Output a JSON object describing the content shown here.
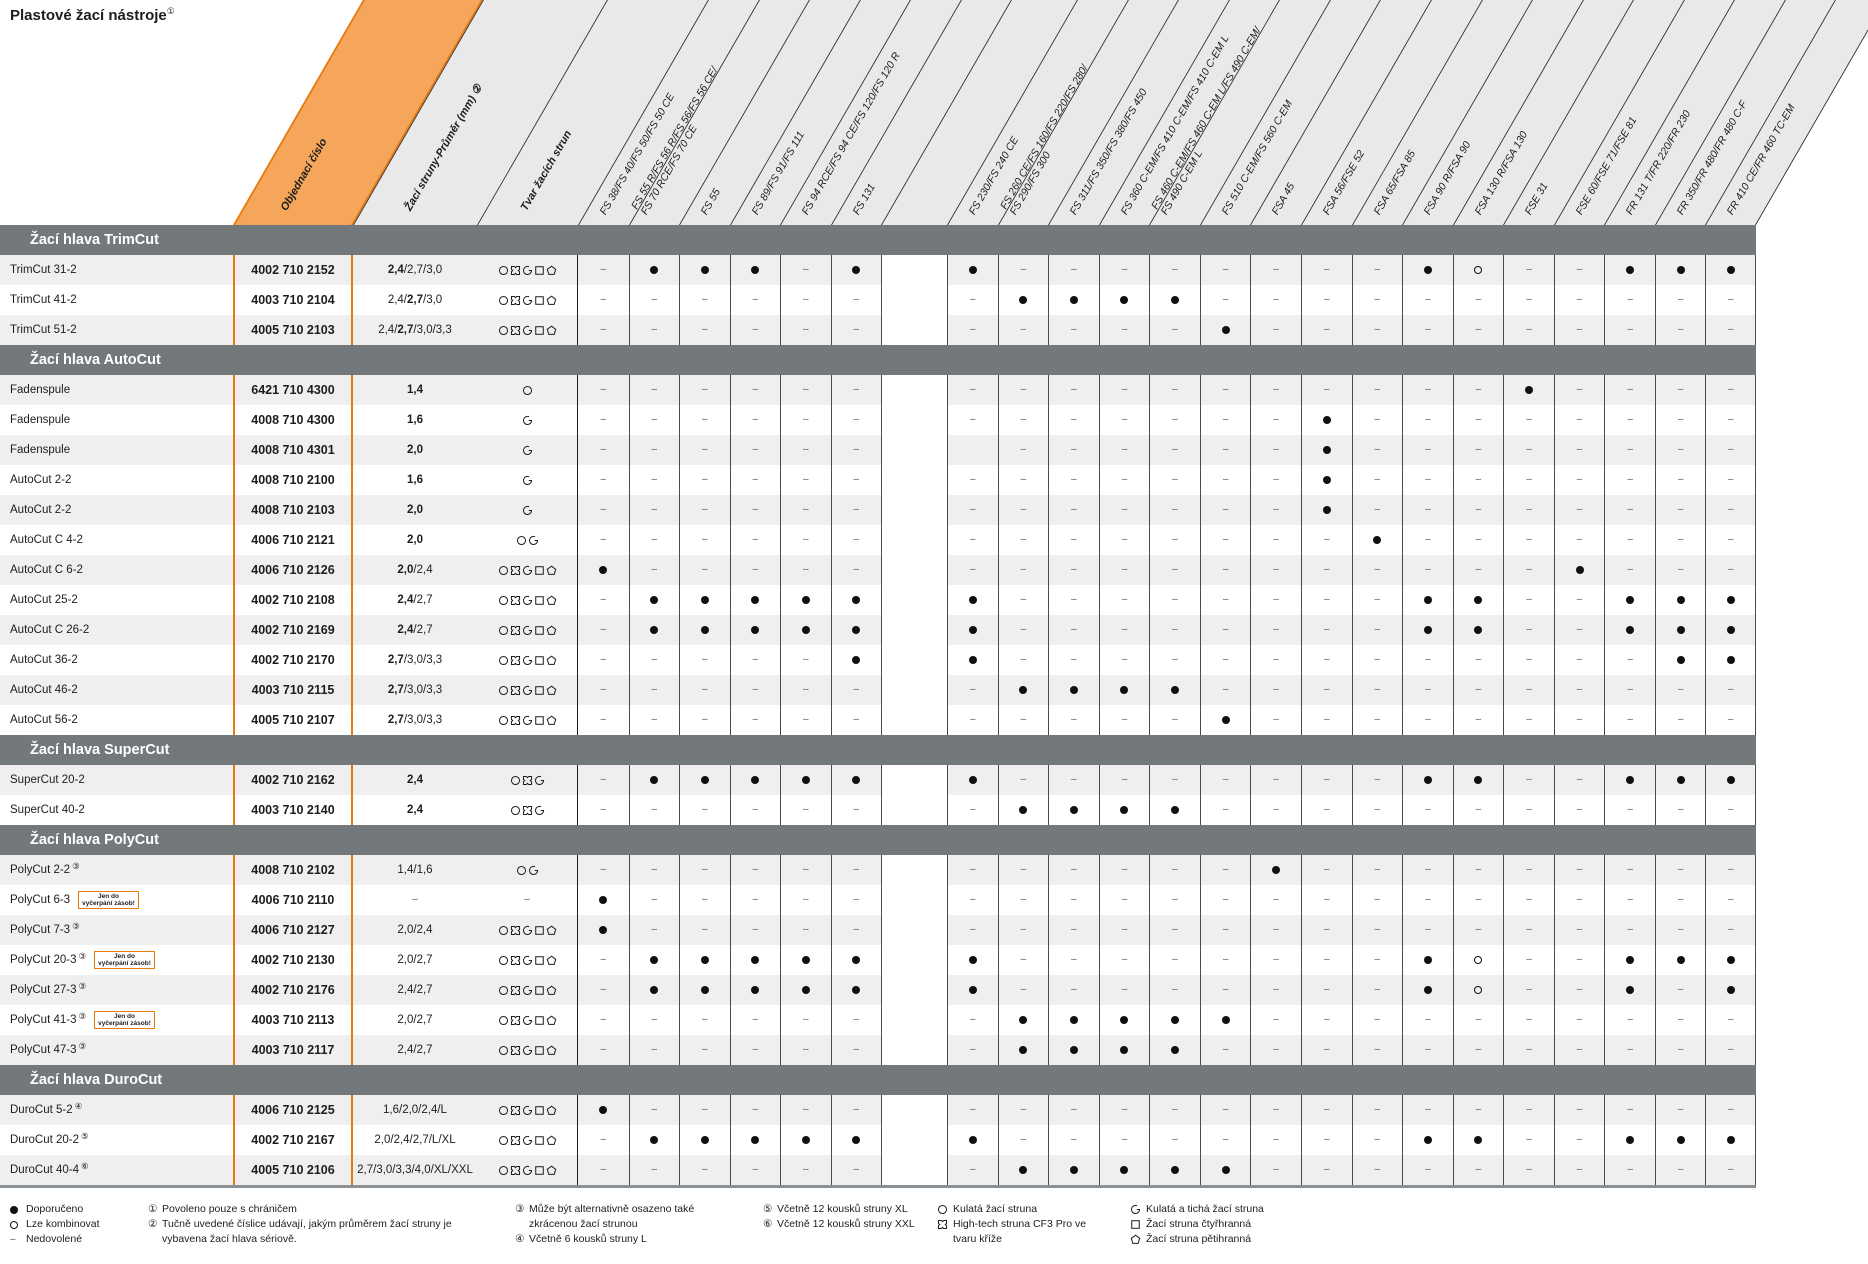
{
  "title": {
    "text": "Plastové žací nástroje",
    "sup": "①"
  },
  "header": {
    "order_label": "Objednací číslo",
    "diameter_label": "Žací struny-Průměr (mm) ②",
    "shape_label": "Tvar žacích strun",
    "models": [
      {
        "lines": [
          "FS 38/FS 40/FS 50/FS 50 CE"
        ]
      },
      {
        "lines": [
          "FS 55 R/FS 56 R/FS 56/FS 56 CE/",
          "FS 70 RCE/FS 70 CE"
        ]
      },
      {
        "lines": [
          "FS 55"
        ]
      },
      {
        "lines": [
          "FS 89/FS 91/FS 111"
        ]
      },
      {
        "lines": [
          "FS 94 RCE/FS 94 CE/FS 120/FS 120 R"
        ]
      },
      {
        "lines": [
          "FS 131"
        ]
      },
      {
        "lines": []
      },
      {
        "lines": [
          "FS 230/FS 240 CE"
        ]
      },
      {
        "lines": [
          "FS 260 CE/FS 160/FS 220/FS 280/",
          "FS 290/FS 300"
        ]
      },
      {
        "lines": [
          "FS 311/FS 350/FS 380/FS 450"
        ]
      },
      {
        "lines": [
          "FS 360 C-EM/FS 410 C-EM/FS 410 C-EM L"
        ]
      },
      {
        "lines": [
          "FS 460 C-EM/FS 460 C-EM L/FS 490 C-EM/",
          "FS 490 C-EM L"
        ]
      },
      {
        "lines": [
          "FS 510 C-EM/FS 560 C-EM"
        ]
      },
      {
        "lines": [
          "FSA 45"
        ]
      },
      {
        "lines": [
          "FSA 56/FSE 52"
        ]
      },
      {
        "lines": [
          "FSA 65/FSA 85"
        ]
      },
      {
        "lines": [
          "FSA 90 R/FSA 90"
        ]
      },
      {
        "lines": [
          "FSA 130 R/FSA 130"
        ]
      },
      {
        "lines": [
          "FSE 31"
        ]
      },
      {
        "lines": [
          "FSE 60/FSE 71/FSE 81"
        ]
      },
      {
        "lines": [
          "FR 131 T/FR 220/FR 230"
        ]
      },
      {
        "lines": [
          "FR 350/FR 480/FR 480 C-F"
        ]
      },
      {
        "lines": [
          "FR 410 CE/FR 460 TC-EM"
        ]
      }
    ]
  },
  "badge": {
    "line1": "Jen do",
    "line2": "vyčerpání zásob!"
  },
  "sections": [
    {
      "title": "Žací hlava TrimCut",
      "rows": [
        {
          "name": "TrimCut 31-2",
          "sup": "",
          "badge": false,
          "order": "4002 710 2152",
          "dia": "2,4/2,7/3,0",
          "bold_idx": 0,
          "shapes": [
            "circle",
            "cross",
            "quiet",
            "square",
            "penta"
          ],
          "matrix": "-fff-f.f--------fo--fff"
        },
        {
          "name": "TrimCut 41-2",
          "sup": "",
          "badge": false,
          "order": "4003 710 2104",
          "dia": "2,4/2,7/3,0",
          "bold_idx": 1,
          "shapes": [
            "circle",
            "cross",
            "quiet",
            "square",
            "penta"
          ],
          "matrix": "------.-ffff-----------"
        },
        {
          "name": "TrimCut 51-2",
          "sup": "",
          "badge": false,
          "order": "4005 710 2103",
          "dia": "2,4/2,7/3,0/3,3",
          "bold_idx": 1,
          "shapes": [
            "circle",
            "cross",
            "quiet",
            "square",
            "penta"
          ],
          "matrix": "------.-----f----------"
        }
      ]
    },
    {
      "title": "Žací hlava AutoCut",
      "rows": [
        {
          "name": "Fadenspule",
          "sup": "",
          "badge": false,
          "order": "6421 710 4300",
          "dia": "1,4",
          "bold_idx": 0,
          "shapes": [
            "circle"
          ],
          "matrix": "------.-----------f----"
        },
        {
          "name": "Fadenspule",
          "sup": "",
          "badge": false,
          "order": "4008 710 4300",
          "dia": "1,6",
          "bold_idx": 0,
          "shapes": [
            "quiet"
          ],
          "matrix": "------.-------f--------"
        },
        {
          "name": "Fadenspule",
          "sup": "",
          "badge": false,
          "order": "4008 710 4301",
          "dia": "2,0",
          "bold_idx": 0,
          "shapes": [
            "quiet"
          ],
          "matrix": "------..------f--------"
        },
        {
          "name": "AutoCut 2-2",
          "sup": "",
          "badge": false,
          "order": "4008 710 2100",
          "dia": "1,6",
          "bold_idx": 0,
          "shapes": [
            "quiet"
          ],
          "matrix": "------.-------f--------"
        },
        {
          "name": "AutoCut 2-2",
          "sup": "",
          "badge": false,
          "order": "4008 710 2103",
          "dia": "2,0",
          "bold_idx": 0,
          "shapes": [
            "quiet"
          ],
          "matrix": "------.-------f--------"
        },
        {
          "name": "AutoCut C 4-2",
          "sup": "",
          "badge": false,
          "order": "4006 710 2121",
          "dia": "2,0",
          "bold_idx": 0,
          "shapes": [
            "circle",
            "quiet"
          ],
          "matrix": "------.--------f-------"
        },
        {
          "name": "AutoCut C 6-2",
          "sup": "",
          "badge": false,
          "order": "4006 710 2126",
          "dia": "2,0/2,4",
          "bold_idx": 0,
          "shapes": [
            "circle",
            "cross",
            "quiet",
            "square",
            "penta"
          ],
          "matrix": "f-----.------------f---"
        },
        {
          "name": "AutoCut 25-2",
          "sup": "",
          "badge": false,
          "order": "4002 710 2108",
          "dia": "2,4/2,7",
          "bold_idx": 0,
          "shapes": [
            "circle",
            "cross",
            "quiet",
            "square",
            "penta"
          ],
          "matrix": "-fffff.f--------ff--fff"
        },
        {
          "name": "AutoCut C 26-2",
          "sup": "",
          "badge": false,
          "order": "4002 710 2169",
          "dia": "2,4/2,7",
          "bold_idx": 0,
          "shapes": [
            "circle",
            "cross",
            "quiet",
            "square",
            "penta"
          ],
          "matrix": "-fffff.f--------ff--fff"
        },
        {
          "name": "AutoCut 36-2",
          "sup": "",
          "badge": false,
          "order": "4002 710 2170",
          "dia": "2,7/3,0/3,3",
          "bold_idx": 0,
          "shapes": [
            "circle",
            "cross",
            "quiet",
            "square",
            "penta"
          ],
          "matrix": "-----f.f-------------ff"
        },
        {
          "name": "AutoCut 46-2",
          "sup": "",
          "badge": false,
          "order": "4003 710 2115",
          "dia": "2,7/3,0/3,3",
          "bold_idx": 0,
          "shapes": [
            "circle",
            "cross",
            "quiet",
            "square",
            "penta"
          ],
          "matrix": "------.-ffff-----------"
        },
        {
          "name": "AutoCut 56-2",
          "sup": "",
          "badge": false,
          "order": "4005 710 2107",
          "dia": "2,7/3,0/3,3",
          "bold_idx": 0,
          "shapes": [
            "circle",
            "cross",
            "quiet",
            "square",
            "penta"
          ],
          "matrix": "------.-----f----------"
        }
      ]
    },
    {
      "title": "Žací hlava SuperCut",
      "rows": [
        {
          "name": "SuperCut 20-2",
          "sup": "",
          "badge": false,
          "order": "4002 710 2162",
          "dia": "2,4",
          "bold_idx": 0,
          "shapes": [
            "circle",
            "cross",
            "quiet"
          ],
          "matrix": "-fffff.f--------ff--fff"
        },
        {
          "name": "SuperCut 40-2",
          "sup": "",
          "badge": false,
          "order": "4003 710 2140",
          "dia": "2,4",
          "bold_idx": 0,
          "shapes": [
            "circle",
            "cross",
            "quiet"
          ],
          "matrix": "------.-ffff-----------"
        }
      ]
    },
    {
      "title": "Žací hlava PolyCut",
      "rows": [
        {
          "name": "PolyCut 2-2",
          "sup": "③",
          "badge": false,
          "order": "4008 710 2102",
          "dia": "1,4/1,6",
          "bold_idx": -1,
          "shapes": [
            "circle",
            "quiet"
          ],
          "matrix": "------.------f---------"
        },
        {
          "name": "PolyCut 6-3",
          "sup": "",
          "badge": true,
          "order": "4006 710 2110",
          "dia": "-",
          "bold_idx": -1,
          "shapes": [],
          "matrix": "f-----.----------------"
        },
        {
          "name": "PolyCut 7-3",
          "sup": "③",
          "badge": false,
          "order": "4006 710 2127",
          "dia": "2,0/2,4",
          "bold_idx": -1,
          "shapes": [
            "circle",
            "cross",
            "quiet",
            "square",
            "penta"
          ],
          "matrix": "f-----.----------------"
        },
        {
          "name": "PolyCut 20-3",
          "sup": "③",
          "badge": true,
          "order": "4002 710 2130",
          "dia": "2,0/2,7",
          "bold_idx": -1,
          "shapes": [
            "circle",
            "cross",
            "quiet",
            "square",
            "penta"
          ],
          "matrix": "-fffff.f--------fo--fff"
        },
        {
          "name": "PolyCut 27-3",
          "sup": "③",
          "badge": false,
          "order": "4002 710 2176",
          "dia": "2,4/2,7",
          "bold_idx": -1,
          "shapes": [
            "circle",
            "cross",
            "quiet",
            "square",
            "penta"
          ],
          "matrix": "-fffff.f--------fo--f-f"
        },
        {
          "name": "PolyCut 41-3",
          "sup": "③",
          "badge": true,
          "order": "4003 710 2113",
          "dia": "2,0/2,7",
          "bold_idx": -1,
          "shapes": [
            "circle",
            "cross",
            "quiet",
            "square",
            "penta"
          ],
          "matrix": "------.-fffff----------"
        },
        {
          "name": "PolyCut 47-3",
          "sup": "③",
          "badge": false,
          "order": "4003 710 2117",
          "dia": "2,4/2,7",
          "bold_idx": -1,
          "shapes": [
            "circle",
            "cross",
            "quiet",
            "square",
            "penta"
          ],
          "matrix": "------.-ffff-----------"
        }
      ]
    },
    {
      "title": "Žací hlava DuroCut",
      "rows": [
        {
          "name": "DuroCut 5-2",
          "sup": "④",
          "badge": false,
          "order": "4006 710 2125",
          "dia": "1,6/2,0/2,4/L",
          "bold_idx": -1,
          "shapes": [
            "circle",
            "cross",
            "quiet",
            "square",
            "penta"
          ],
          "matrix": "f-----.----------------"
        },
        {
          "name": "DuroCut 20-2",
          "sup": "⑤",
          "badge": false,
          "order": "4002 710 2167",
          "dia": "2,0/2,4/2,7/L/XL",
          "bold_idx": -1,
          "shapes": [
            "circle",
            "cross",
            "quiet",
            "square",
            "penta"
          ],
          "matrix": "-fffff.f--------ff--fff"
        },
        {
          "name": "DuroCut 40-4",
          "sup": "⑥",
          "badge": false,
          "order": "4005 710 2106",
          "dia": "2,7/3,0/3,3/4,0/XL/XXL",
          "bold_idx": -1,
          "shapes": [
            "circle",
            "cross",
            "quiet",
            "square",
            "penta"
          ],
          "matrix": "------.-fffff----------"
        }
      ]
    }
  ],
  "legend": {
    "keys": [
      {
        "sym": "filled",
        "label": "Doporučeno"
      },
      {
        "sym": "open",
        "label": "Lze kombinovat"
      },
      {
        "sym": "dash",
        "label": "Nedovolené"
      }
    ],
    "notes_a": [
      {
        "num": "①",
        "text": "Povoleno pouze s chráničem"
      },
      {
        "num": "②",
        "text": "Tučně uvedené číslice udávají, jakým průměrem žací struny je vybavena žací hlava sériově."
      }
    ],
    "notes_b": [
      {
        "num": "③",
        "text": "Může být alternativně osazeno také zkrácenou žací strunou"
      },
      {
        "num": "④",
        "text": "Včetně 6 kousků struny L"
      }
    ],
    "notes_c": [
      {
        "num": "⑤",
        "text": "Včetně 12 kousků struny XL"
      },
      {
        "num": "⑥",
        "text": "Včetně 12 kousků struny XXL"
      }
    ],
    "shapes_a": [
      {
        "icon": "circle",
        "text": "Kulatá žací struna"
      },
      {
        "icon": "cross",
        "text": "High-tech struna CF3 Pro ve tvaru kříže"
      }
    ],
    "shapes_b": [
      {
        "icon": "quiet",
        "text": "Kulatá a tichá žací struna"
      },
      {
        "icon": "square",
        "text": "Žací struna čtyřhranná"
      },
      {
        "icon": "penta",
        "text": "Žací struna pětihranná"
      }
    ]
  },
  "colors": {
    "orange_line": "#E8790F",
    "orange_fill": "#F5A65B",
    "section_bar": "#73787B",
    "header_band": "#E9E9E9",
    "zebra": "#EFEFEF",
    "text": "#1D1D1B"
  }
}
